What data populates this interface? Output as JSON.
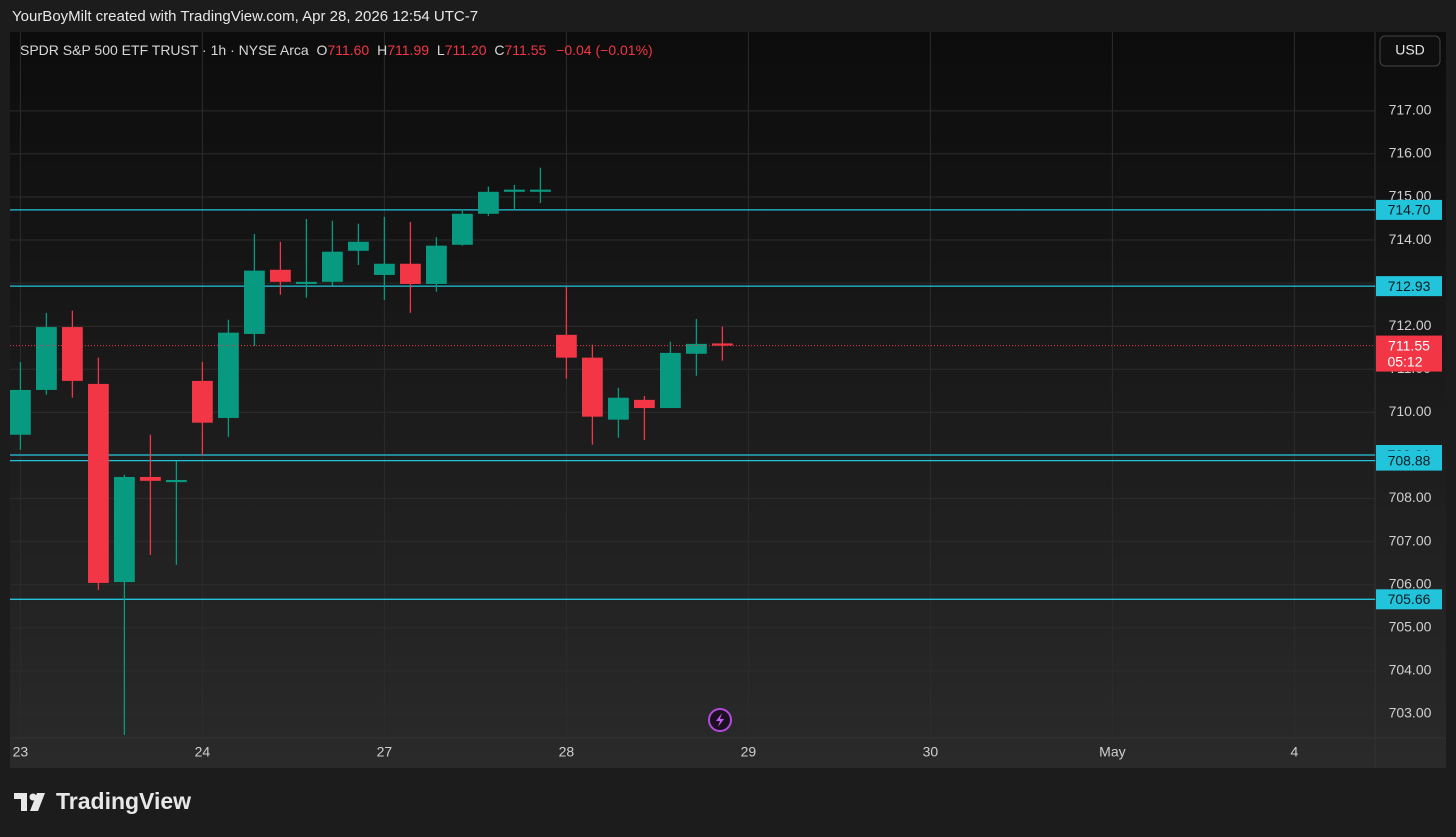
{
  "header": {
    "credit": "YourBoyMilt created with TradingView.com, Apr 28, 2026 12:54 UTC-7",
    "symbol": "SPDR S&P 500 ETF TRUST · 1h · NYSE Arca",
    "o_label": "O",
    "o": "711.60",
    "h_label": "H",
    "h": "711.99",
    "l_label": "L",
    "l": "711.20",
    "c_label": "C",
    "c": "711.55",
    "change": "−0.04 (−0.01%)",
    "currency": "USD"
  },
  "footer": {
    "logo": "TradingView"
  },
  "chart_data": {
    "type": "candlestick",
    "open": [
      709.48,
      710.52,
      711.98,
      710.66,
      706.06,
      708.5,
      708.38,
      710.73,
      709.87,
      711.82,
      713.31,
      712.98,
      713.03,
      713.75,
      713.19,
      713.45,
      712.98,
      713.89,
      714.61,
      715.12,
      715.12,
      711.8,
      711.27,
      709.83,
      710.29,
      710.1,
      711.36,
      711.6
    ],
    "high": [
      711.17,
      712.31,
      712.36,
      711.27,
      708.55,
      709.48,
      708.87,
      711.17,
      712.15,
      714.14,
      713.96,
      714.49,
      714.45,
      714.38,
      714.54,
      714.42,
      714.07,
      714.72,
      715.24,
      715.28,
      715.68,
      712.91,
      711.57,
      710.57,
      710.38,
      711.64,
      712.17,
      711.99
    ],
    "low": [
      709.13,
      710.41,
      710.34,
      705.88,
      702.51,
      706.69,
      706.46,
      709.01,
      709.43,
      711.54,
      712.73,
      712.66,
      712.94,
      713.42,
      712.61,
      712.31,
      712.8,
      713.87,
      714.56,
      714.68,
      714.86,
      710.78,
      709.25,
      709.41,
      709.36,
      710.1,
      710.85,
      711.2
    ],
    "close": [
      710.52,
      711.98,
      710.73,
      706.04,
      708.5,
      708.41,
      708.43,
      709.76,
      711.85,
      713.29,
      713.03,
      713.03,
      713.73,
      713.96,
      713.45,
      712.98,
      713.87,
      714.61,
      715.12,
      715.17,
      715.17,
      711.27,
      709.9,
      710.34,
      710.1,
      711.38,
      711.59,
      711.55
    ],
    "up_color": "#089981",
    "down_color": "#f23645",
    "ylim": [
      702.44,
      718.83
    ],
    "yticks": [
      {
        "value": 703,
        "label": "703.00"
      },
      {
        "value": 704,
        "label": "704.00"
      },
      {
        "value": 705,
        "label": "705.00"
      },
      {
        "value": 706,
        "label": "706.00"
      },
      {
        "value": 707,
        "label": "707.00"
      },
      {
        "value": 708,
        "label": "708.00"
      },
      {
        "value": 709,
        "label": "709.00"
      },
      {
        "value": 710,
        "label": "710.00"
      },
      {
        "value": 711,
        "label": "711.00"
      },
      {
        "value": 712,
        "label": "712.00"
      },
      {
        "value": 713,
        "label": "713.00"
      },
      {
        "value": 714,
        "label": "714.00"
      },
      {
        "value": 715,
        "label": "715.00"
      },
      {
        "value": 716,
        "label": "716.00"
      },
      {
        "value": 717,
        "label": "717.00"
      }
    ],
    "xlim": [
      -0.4,
      52.1
    ],
    "xticks": [
      {
        "value": 0,
        "label": "23"
      },
      {
        "value": 7,
        "label": "24"
      },
      {
        "value": 14,
        "label": "27"
      },
      {
        "value": 21,
        "label": "28"
      },
      {
        "value": 28,
        "label": "29"
      },
      {
        "value": 35,
        "label": "30"
      },
      {
        "value": 42,
        "label": "May"
      },
      {
        "value": 49,
        "label": "4"
      }
    ],
    "grid": true,
    "hlines": [
      {
        "value": 714.7,
        "label": "714.70"
      },
      {
        "value": 712.93,
        "label": "712.93"
      },
      {
        "value": 709.01,
        "label": "709.01"
      },
      {
        "value": 708.88,
        "label": "708.88"
      },
      {
        "value": 705.66,
        "label": "705.66"
      }
    ],
    "hline_color": "#22c4dc",
    "last_price": {
      "value": 711.55,
      "label": "711.55",
      "countdown": "05:12"
    }
  }
}
